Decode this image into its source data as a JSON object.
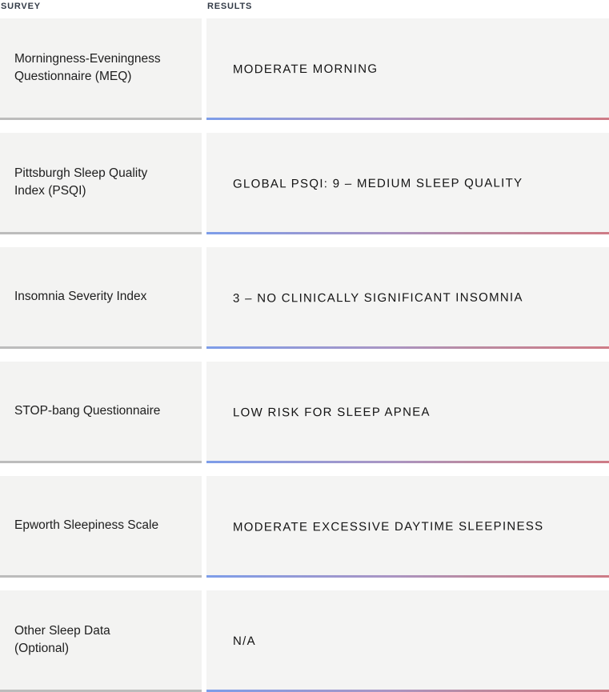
{
  "header": {
    "survey_label": "SURVEY",
    "results_label": "RESULTS"
  },
  "colors": {
    "header_text": "#333b47",
    "cell_background": "#f3f3f2",
    "label_divider": "#bcbcbc",
    "result_underline_start": "#7d9de9",
    "result_underline_end": "#ce7b86"
  },
  "table": {
    "rows": [
      {
        "survey": "Morningness-Eveningness Questionnaire (MEQ)",
        "result": "MODERATE MORNING"
      },
      {
        "survey": "Pittsburgh Sleep Quality Index (PSQI)",
        "result": "GLOBAL PSQI: 9 – MEDIUM SLEEP QUALITY"
      },
      {
        "survey": "Insomnia Severity Index",
        "result": "3 – NO CLINICALLY SIGNIFICANT INSOMNIA"
      },
      {
        "survey": "STOP-bang Questionnaire",
        "result": "LOW RISK FOR SLEEP APNEA"
      },
      {
        "survey": "Epworth Sleepiness Scale",
        "result": "MODERATE EXCESSIVE DAYTIME SLEEPINESS"
      },
      {
        "survey": "Other Sleep Data (Optional)",
        "result": "N/A"
      }
    ]
  }
}
